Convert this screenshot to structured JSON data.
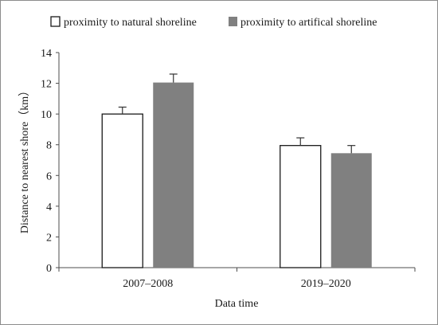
{
  "chart_data": {
    "type": "bar",
    "categories": [
      "2007–2008",
      "2019–2020"
    ],
    "series": [
      {
        "name": "proximity to natural shoreline",
        "values": [
          10.0,
          7.95
        ],
        "errors": [
          0.45,
          0.5
        ],
        "color": "#ffffff",
        "edge": "#1a1a1a"
      },
      {
        "name": "proximity to artifical shoreline",
        "values": [
          12.05,
          7.45
        ],
        "errors": [
          0.55,
          0.5
        ],
        "color": "#808080",
        "edge": "#808080"
      }
    ],
    "xlabel": "Data time",
    "ylabel": "Distance to nearest shore（km）",
    "ylim": [
      0,
      14
    ],
    "yticks": [
      "0",
      "2",
      "4",
      "6",
      "8",
      "10",
      "12",
      "14"
    ],
    "grid": false,
    "legend_position": "top"
  }
}
